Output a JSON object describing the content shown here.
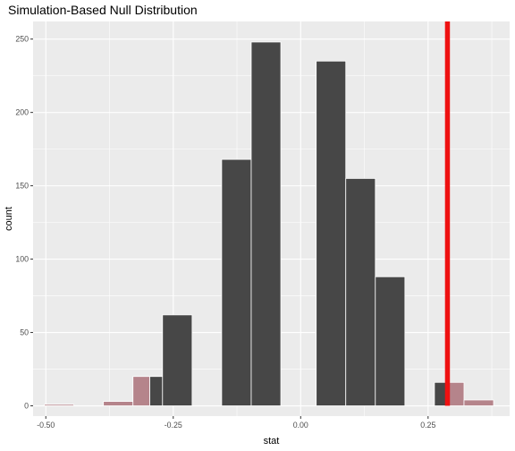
{
  "chart_data": {
    "type": "bar",
    "title": "Simulation-Based Null Distribution",
    "xlabel": "stat",
    "ylabel": "count",
    "xlim": [
      -0.525,
      0.41
    ],
    "ylim": [
      -7,
      262
    ],
    "x_ticks": [
      -0.5,
      -0.25,
      0.0,
      0.25
    ],
    "x_tick_labels": [
      "-0.50",
      "-0.25",
      "0.00",
      "0.25"
    ],
    "y_ticks": [
      0,
      50,
      100,
      150,
      200,
      250
    ],
    "y_tick_labels": [
      "0",
      "50",
      "100",
      "150",
      "200",
      "250"
    ],
    "grid": true,
    "bar_fill": "#474747",
    "bar_edge": "#ffffff",
    "shade_fill": "#b5848b",
    "observed_line_color": "#ee1111",
    "observed_stat": 0.288,
    "bars": [
      {
        "x0": -0.503,
        "x1": -0.445,
        "count": 1,
        "shaded": true
      },
      {
        "x0": -0.387,
        "x1": -0.329,
        "count": 3,
        "shaded": true
      },
      {
        "x0": -0.329,
        "x1": -0.296,
        "count": 20,
        "shaded": true
      },
      {
        "x0": -0.296,
        "x1": -0.271,
        "count": 20,
        "shaded": false
      },
      {
        "x0": -0.271,
        "x1": -0.213,
        "count": 62,
        "shaded": false
      },
      {
        "x0": -0.155,
        "x1": -0.097,
        "count": 168,
        "shaded": false
      },
      {
        "x0": -0.097,
        "x1": -0.039,
        "count": 248,
        "shaded": false
      },
      {
        "x0": 0.0305,
        "x1": 0.0885,
        "count": 235,
        "shaded": false
      },
      {
        "x0": 0.0885,
        "x1": 0.1465,
        "count": 155,
        "shaded": false
      },
      {
        "x0": 0.1465,
        "x1": 0.2045,
        "count": 88,
        "shaded": false
      },
      {
        "x0": 0.2625,
        "x1": 0.288,
        "count": 16,
        "shaded": false
      },
      {
        "x0": 0.288,
        "x1": 0.3205,
        "count": 16,
        "shaded": true
      },
      {
        "x0": 0.3205,
        "x1": 0.3785,
        "count": 4,
        "shaded": true
      }
    ]
  }
}
